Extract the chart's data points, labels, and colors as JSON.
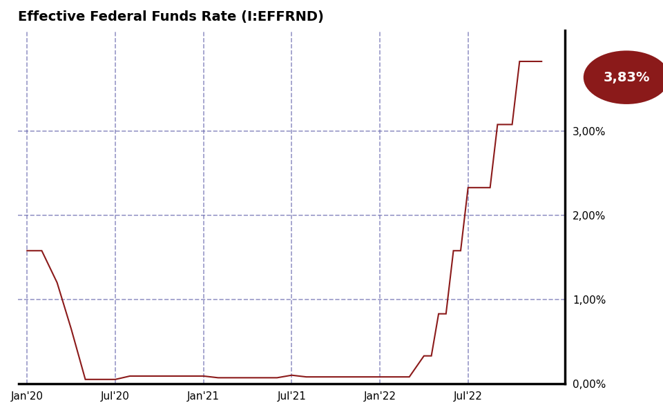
{
  "title": "Effective Federal Funds Rate (I:EFFRND)",
  "title_fontsize": 14,
  "title_fontweight": "bold",
  "bg_color": "#ffffff",
  "line_color": "#8B1A1A",
  "grid_color": "#6B6BB0",
  "axis_label_color": "#000000",
  "badge_color": "#8B1A1A",
  "badge_text": "3,83%",
  "badge_text_color": "#ffffff",
  "ymin": 0.0,
  "ymax": 4.2,
  "yticks": [
    0.0,
    1.0,
    2.0,
    3.0
  ],
  "ytick_labels": [
    "0,00%",
    "1,00%",
    "2,00%",
    "3,00%"
  ],
  "dates_numeric": [
    2020.0,
    2020.04,
    2020.083,
    2020.17,
    2020.25,
    2020.33,
    2020.5,
    2020.583,
    2020.667,
    2020.75,
    2020.833,
    2020.917,
    2021.0,
    2021.083,
    2021.167,
    2021.25,
    2021.333,
    2021.417,
    2021.5,
    2021.583,
    2021.667,
    2021.75,
    2021.833,
    2021.917,
    2022.0,
    2022.083,
    2022.167,
    2022.25,
    2022.292,
    2022.333,
    2022.375,
    2022.417,
    2022.458,
    2022.5,
    2022.542,
    2022.583,
    2022.625,
    2022.667,
    2022.708,
    2022.75,
    2022.792,
    2022.833,
    2022.875,
    2022.917
  ],
  "values": [
    1.58,
    1.58,
    1.58,
    1.2,
    0.65,
    0.05,
    0.05,
    0.09,
    0.09,
    0.09,
    0.09,
    0.09,
    0.09,
    0.07,
    0.07,
    0.07,
    0.07,
    0.07,
    0.1,
    0.08,
    0.08,
    0.08,
    0.08,
    0.08,
    0.08,
    0.08,
    0.08,
    0.33,
    0.33,
    0.83,
    0.83,
    1.58,
    1.58,
    2.33,
    2.33,
    2.33,
    2.33,
    3.08,
    3.08,
    3.08,
    3.83,
    3.83,
    3.83,
    3.83
  ],
  "xtick_positions": [
    2020.0,
    2020.5,
    2021.0,
    2021.5,
    2022.0,
    2022.5
  ],
  "xtick_labels": [
    "Jan'20",
    "Jul'20",
    "Jan'21",
    "Jul'21",
    "Jan'22",
    "Jul'22"
  ],
  "spine_color": "#000000",
  "badge_value": 3.83,
  "final_date": 2022.917
}
